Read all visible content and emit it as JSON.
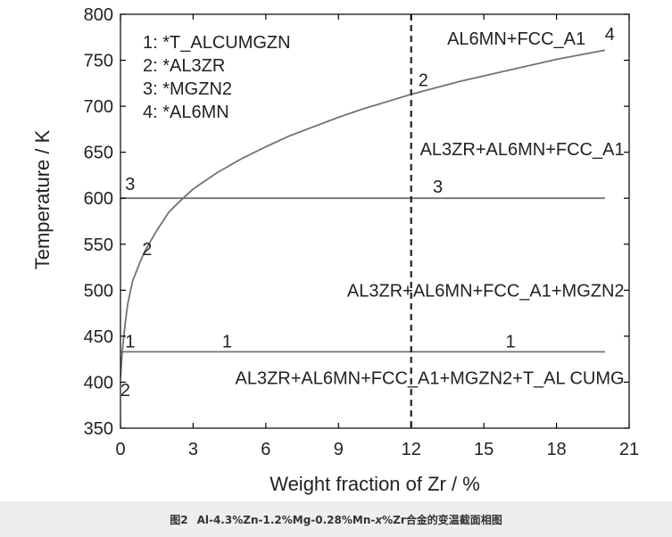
{
  "chart_data": {
    "type": "line",
    "xlabel": "Weight fraction of Zr / %",
    "ylabel": "Temperature / K",
    "xlim": [
      0,
      21
    ],
    "ylim": [
      350,
      800
    ],
    "xticks": [
      0,
      3,
      6,
      9,
      12,
      15,
      18,
      21
    ],
    "yticks": [
      350,
      400,
      450,
      500,
      550,
      600,
      650,
      700,
      750,
      800
    ],
    "grid": false,
    "legend_position": "top-left",
    "legend": [
      "1: *T_ALCUMGZN",
      "2: *AL3ZR",
      "3: *MGZN2",
      "4: *AL6MN"
    ],
    "series": [
      {
        "type": "curve",
        "x": [
          0.0,
          0.05,
          0.1,
          0.2,
          0.3,
          0.5,
          0.8,
          1.0,
          1.5,
          2.0,
          2.5,
          3.0,
          4.0,
          5.0,
          6.0,
          7.0,
          8.0,
          9.0,
          10.0,
          11.0,
          12.0,
          13.0,
          14.0,
          15.0,
          16.0,
          17.0,
          18.0,
          19.0,
          20.0
        ],
        "y": [
          405,
          425,
          440,
          465,
          485,
          510,
          530,
          542,
          565,
          585,
          598,
          610,
          628,
          643,
          656,
          668,
          678,
          688,
          697,
          705,
          713,
          720,
          727,
          733,
          739,
          745,
          751,
          756,
          761
        ],
        "labels": [
          {
            "text": "2",
            "x": 1.1,
            "y": 538
          },
          {
            "text": "2",
            "x": 12.5,
            "y": 722
          },
          {
            "text": "2",
            "x": 0.2,
            "y": 385
          },
          {
            "text": "4",
            "x": 20.2,
            "y": 772
          }
        ]
      },
      {
        "type": "hline",
        "x": [
          0,
          20
        ],
        "y": [
          600,
          600
        ],
        "labels": [
          {
            "text": "3",
            "x": 0.4,
            "y": 609
          },
          {
            "text": "3",
            "x": 13.1,
            "y": 606
          }
        ]
      },
      {
        "type": "hline",
        "x": [
          0,
          20
        ],
        "y": [
          433,
          433
        ],
        "labels": [
          {
            "text": "1",
            "x": 0.4,
            "y": 438
          },
          {
            "text": "1",
            "x": 4.4,
            "y": 438
          },
          {
            "text": "1",
            "x": 16.1,
            "y": 438
          }
        ]
      }
    ],
    "vline": {
      "x": 12,
      "style": "dashed"
    },
    "annotations": [
      {
        "text": "AL6MN+FCC_A1",
        "x": 19.2,
        "y": 767,
        "anchor": "end"
      },
      {
        "text": "AL3ZR+AL6MN+FCC_A1",
        "x": 20.8,
        "y": 647,
        "anchor": "end"
      },
      {
        "text": "AL3ZR+AL6MN+FCC_A1+MGZN2",
        "x": 20.8,
        "y": 493,
        "anchor": "end"
      },
      {
        "text": "AL3ZR+AL6MN+FCC_A1+MGZN2+T_AL CUMG",
        "x": 20.8,
        "y": 398,
        "anchor": "end"
      }
    ]
  },
  "caption": {
    "label": "图2",
    "text_before": "Al-4.3%Zn-1.2%Mg-0.28%Mn-",
    "var": "x",
    "text_after": "%Zr合金的变温截面相图"
  }
}
